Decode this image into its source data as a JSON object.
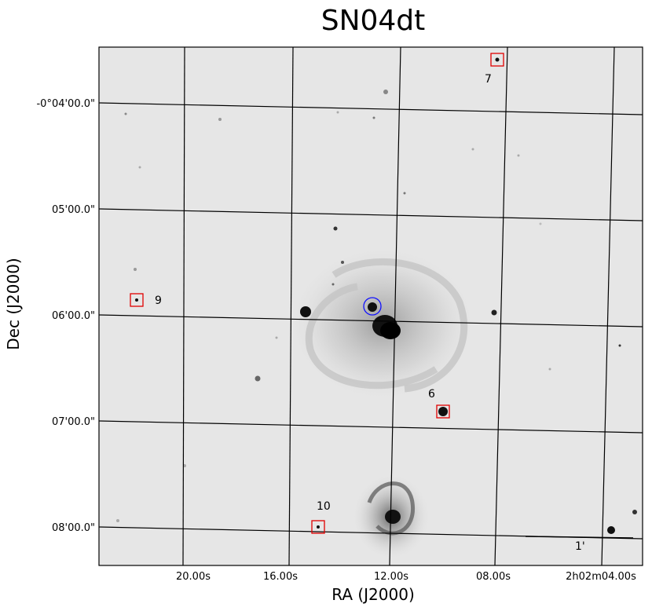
{
  "title": "SN04dt",
  "axes": {
    "xlabel": "RA (J2000)",
    "ylabel": "Dec (J2000)",
    "ra_ticks": [
      "20.00s",
      "16.00s",
      "12.00s",
      "08.00s",
      "2h02m04.00s"
    ],
    "dec_ticks": [
      "-0°04'00.0\"",
      "05'00.0\"",
      "06'00.0\"",
      "07'00.0\"",
      "08'00.0\""
    ]
  },
  "markers": [
    {
      "label": "7",
      "kind": "comparison-star"
    },
    {
      "label": "9",
      "kind": "comparison-star"
    },
    {
      "label": "6",
      "kind": "comparison-star"
    },
    {
      "label": "10",
      "kind": "comparison-star"
    }
  ],
  "supernova_marker": {
    "kind": "circle",
    "color": "#0000ff"
  },
  "scale_bar": {
    "label": "1'"
  },
  "colors": {
    "box": "#e00000",
    "circle": "#1010ff",
    "grid": "#000000",
    "sky": "#e6e6e6"
  }
}
